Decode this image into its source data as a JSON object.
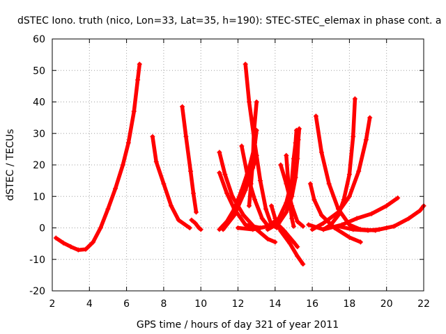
{
  "chart_data": {
    "type": "scatter",
    "title": "dSTEC Iono. truth (nico, Lon=33, Lat=35, h=190): STEC-STEC_elemax in phase cont. a",
    "xlabel": "GPS time / hours of day 321 of year 2011",
    "ylabel": "dSTEC  / TECUs",
    "xlim": [
      2,
      22
    ],
    "ylim": [
      -20,
      60
    ],
    "xticks": [
      "2",
      "4",
      "6",
      "8",
      "10",
      "12",
      "14",
      "16",
      "18",
      "20",
      "22"
    ],
    "yticks": [
      "-20",
      "-10",
      "0",
      "10",
      "20",
      "30",
      "40",
      "50",
      "60"
    ],
    "grid": true,
    "legend": "none",
    "marker": "plus",
    "color": "#ff0000",
    "series": [
      {
        "points": [
          [
            2.2,
            -3.2
          ],
          [
            2.6,
            -4.8
          ],
          [
            3.0,
            -6.0
          ],
          [
            3.4,
            -7.0
          ],
          [
            3.8,
            -6.8
          ],
          [
            4.2,
            -4.5
          ],
          [
            4.6,
            0.0
          ],
          [
            5.0,
            6.0
          ],
          [
            5.4,
            12.5
          ],
          [
            5.8,
            20.0
          ],
          [
            6.1,
            27.0
          ],
          [
            6.4,
            37.0
          ],
          [
            6.6,
            47.0
          ],
          [
            6.7,
            52.0
          ]
        ]
      },
      {
        "points": [
          [
            7.4,
            29.0
          ],
          [
            7.6,
            21.0
          ],
          [
            8.0,
            14.0
          ],
          [
            8.4,
            7.0
          ],
          [
            8.8,
            2.5
          ],
          [
            9.4,
            0.0
          ]
        ]
      },
      {
        "points": [
          [
            9.0,
            38.5
          ],
          [
            9.2,
            29.0
          ],
          [
            9.45,
            18.0
          ],
          [
            9.6,
            11.0
          ],
          [
            9.75,
            5.0
          ]
        ]
      },
      {
        "points": [
          [
            9.5,
            2.5
          ],
          [
            9.7,
            1.5
          ],
          [
            9.9,
            0.0
          ],
          [
            10.0,
            -0.5
          ]
        ]
      },
      {
        "points": [
          [
            11.0,
            24.0
          ],
          [
            11.3,
            17.0
          ],
          [
            11.7,
            10.0
          ],
          [
            12.3,
            4.0
          ],
          [
            13.0,
            -0.5
          ],
          [
            13.6,
            -3.5
          ],
          [
            14.0,
            -4.5
          ]
        ]
      },
      {
        "points": [
          [
            11.0,
            17.5
          ],
          [
            11.4,
            11.0
          ],
          [
            11.8,
            6.0
          ],
          [
            12.4,
            1.0
          ],
          [
            13.2,
            0.0
          ]
        ]
      },
      {
        "points": [
          [
            11.0,
            -0.5
          ],
          [
            11.4,
            2.0
          ],
          [
            11.8,
            6.0
          ],
          [
            12.2,
            12.0
          ],
          [
            12.6,
            19.0
          ],
          [
            12.9,
            26.0
          ],
          [
            13.0,
            31.0
          ]
        ]
      },
      {
        "points": [
          [
            11.2,
            -0.5
          ],
          [
            11.8,
            4.0
          ],
          [
            12.4,
            12.0
          ],
          [
            12.8,
            19.0
          ],
          [
            13.0,
            23.0
          ]
        ]
      },
      {
        "points": [
          [
            12.2,
            26.0
          ],
          [
            12.5,
            17.0
          ],
          [
            12.9,
            9.0
          ],
          [
            13.3,
            3.0
          ],
          [
            13.7,
            0.0
          ]
        ]
      },
      {
        "points": [
          [
            12.4,
            52.0
          ],
          [
            12.6,
            40.0
          ],
          [
            12.9,
            27.0
          ],
          [
            13.2,
            15.0
          ],
          [
            13.5,
            6.0
          ],
          [
            13.8,
            1.0
          ],
          [
            14.1,
            0.0
          ]
        ]
      },
      {
        "points": [
          [
            13.0,
            40.0
          ],
          [
            12.85,
            30.0
          ],
          [
            12.8,
            21.0
          ],
          [
            12.7,
            14.0
          ],
          [
            12.6,
            7.0
          ]
        ]
      },
      {
        "points": [
          [
            12.0,
            0.0
          ],
          [
            12.8,
            -0.5
          ],
          [
            13.6,
            0.5
          ],
          [
            14.2,
            3.0
          ],
          [
            14.6,
            8.0
          ],
          [
            14.9,
            15.0
          ],
          [
            15.0,
            22.0
          ],
          [
            15.1,
            27.0
          ],
          [
            15.15,
            31.0
          ]
        ]
      },
      {
        "points": [
          [
            14.6,
            23.0
          ],
          [
            14.7,
            15.0
          ],
          [
            14.8,
            8.0
          ],
          [
            14.9,
            3.0
          ],
          [
            15.0,
            0.5
          ]
        ]
      },
      {
        "points": [
          [
            14.3,
            20.0
          ],
          [
            14.6,
            14.0
          ],
          [
            14.9,
            7.0
          ],
          [
            15.2,
            2.0
          ],
          [
            15.5,
            0.5
          ]
        ]
      },
      {
        "points": [
          [
            13.8,
            7.0
          ],
          [
            14.0,
            3.0
          ],
          [
            14.3,
            -1.0
          ],
          [
            14.8,
            -5.0
          ],
          [
            15.2,
            -9.0
          ],
          [
            15.5,
            -11.5
          ]
        ]
      },
      {
        "points": [
          [
            14.0,
            2.0
          ],
          [
            14.5,
            -1.0
          ],
          [
            15.0,
            -4.5
          ],
          [
            15.2,
            -6.0
          ]
        ]
      },
      {
        "points": [
          [
            13.6,
            -0.5
          ],
          [
            14.2,
            1.5
          ],
          [
            14.6,
            5.0
          ],
          [
            14.9,
            10.0
          ],
          [
            15.1,
            16.0
          ],
          [
            15.2,
            22.0
          ],
          [
            15.25,
            28.0
          ],
          [
            15.3,
            31.5
          ]
        ]
      },
      {
        "points": [
          [
            16.2,
            35.5
          ],
          [
            16.5,
            24.0
          ],
          [
            16.9,
            14.0
          ],
          [
            17.4,
            6.0
          ],
          [
            18.0,
            1.0
          ],
          [
            18.6,
            -0.5
          ],
          [
            19.4,
            -0.8
          ],
          [
            20.0,
            0.0
          ]
        ]
      },
      {
        "points": [
          [
            15.9,
            14.0
          ],
          [
            16.1,
            9.0
          ],
          [
            16.5,
            4.0
          ],
          [
            17.2,
            0.0
          ],
          [
            18.0,
            -3.0
          ],
          [
            18.6,
            -4.5
          ]
        ]
      },
      {
        "points": [
          [
            16.6,
            -0.5
          ],
          [
            17.0,
            1.0
          ],
          [
            17.4,
            4.0
          ],
          [
            17.7,
            9.0
          ],
          [
            18.0,
            17.0
          ],
          [
            18.2,
            29.0
          ],
          [
            18.3,
            41.0
          ]
        ]
      },
      {
        "points": [
          [
            16.0,
            -0.5
          ],
          [
            16.6,
            1.5
          ],
          [
            17.4,
            5.0
          ],
          [
            18.0,
            10.0
          ],
          [
            18.5,
            18.0
          ],
          [
            18.9,
            28.0
          ],
          [
            19.1,
            35.0
          ]
        ]
      },
      {
        "points": [
          [
            15.8,
            1.0
          ],
          [
            16.6,
            -0.5
          ],
          [
            17.6,
            1.0
          ],
          [
            18.4,
            3.0
          ],
          [
            19.2,
            4.5
          ],
          [
            20.0,
            7.0
          ],
          [
            20.6,
            9.5
          ]
        ]
      },
      {
        "points": [
          [
            17.4,
            0.5
          ],
          [
            18.2,
            -0.5
          ],
          [
            19.0,
            -0.8
          ],
          [
            19.6,
            -0.5
          ],
          [
            20.4,
            0.5
          ],
          [
            21.2,
            3.0
          ],
          [
            21.8,
            5.5
          ],
          [
            22.0,
            7.0
          ]
        ]
      }
    ]
  }
}
